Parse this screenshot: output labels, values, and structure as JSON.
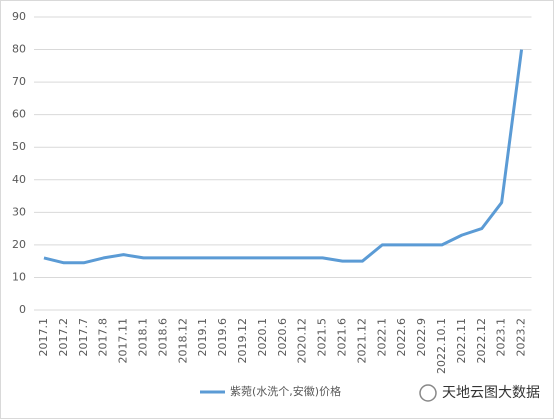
{
  "chart_data": {
    "type": "line",
    "categories": [
      "2017.1",
      "2017.2",
      "2017.7",
      "2017.8",
      "2017.11",
      "2018.1",
      "2018.6",
      "2018.12",
      "2019.1",
      "2019.6",
      "2019.12",
      "2020.1",
      "2020.6",
      "2020.12",
      "2021.5",
      "2021.6",
      "2021.12",
      "2022.1",
      "2022.6",
      "2022.9",
      "2022.10.1",
      "2022.11",
      "2022.12",
      "2023.1",
      "2023.2"
    ],
    "series": [
      {
        "name": "紫菀(水洗个,安徽)价格",
        "color": "#5b9bd5",
        "values": [
          16,
          14.5,
          14.5,
          16,
          17,
          16,
          16,
          16,
          16,
          16,
          16,
          16,
          16,
          16,
          16,
          15,
          15,
          20,
          20,
          20,
          20,
          23,
          25,
          33,
          80
        ]
      }
    ],
    "ylim": [
      0,
      90
    ],
    "yticks": [
      0,
      10,
      20,
      30,
      40,
      50,
      60,
      70,
      80,
      90
    ],
    "grid": true,
    "legend": "bottom",
    "watermark": "天地云图大数据"
  }
}
